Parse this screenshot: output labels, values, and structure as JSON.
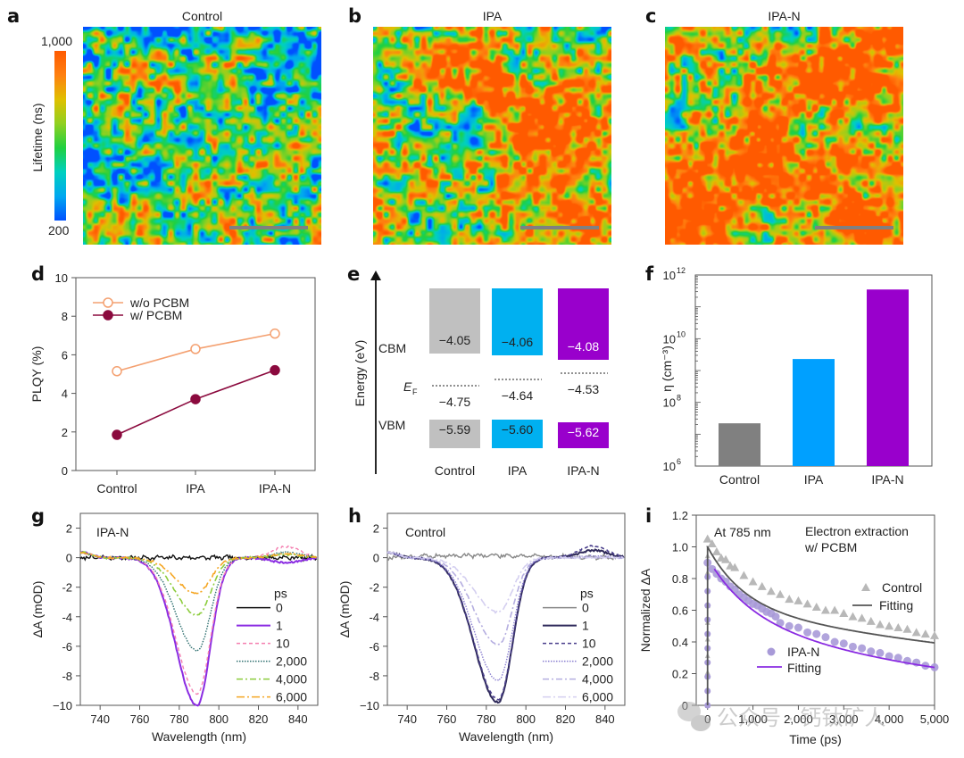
{
  "panels": {
    "a": {
      "label": "a",
      "title": "Control"
    },
    "b": {
      "label": "b",
      "title": "IPA"
    },
    "c": {
      "label": "c",
      "title": "IPA-N"
    },
    "d": {
      "label": "d"
    },
    "e": {
      "label": "e"
    },
    "f": {
      "label": "f"
    },
    "g": {
      "label": "g"
    },
    "h": {
      "label": "h"
    },
    "i": {
      "label": "i"
    }
  },
  "colorbar": {
    "title": "Lifetime (ns)",
    "max_label": "1,000",
    "min_label": "200",
    "range": [
      200,
      1000
    ],
    "colors": [
      "#0050ff",
      "#00a8f0",
      "#00d0c0",
      "#20d040",
      "#90d020",
      "#e0c000",
      "#ff8010",
      "#ff5a00"
    ]
  },
  "watermark": {
    "text": "公众号 · 钙钛矿人",
    "icon": "wechat-icon"
  },
  "chart_data": [
    {
      "id": "a",
      "type": "heatmap",
      "title": "Control",
      "colorbar_label": "Lifetime (ns)",
      "zlim": [
        200,
        1000
      ],
      "description": "PL lifetime map, predominantly blue/green (shorter lifetimes)",
      "mean_level": 0.42,
      "scale_bar": true
    },
    {
      "id": "b",
      "type": "heatmap",
      "title": "IPA",
      "colorbar_label": "Lifetime (ns)",
      "zlim": [
        200,
        1000
      ],
      "description": "PL lifetime map, mixed green/orange with blue channels",
      "mean_level": 0.6,
      "scale_bar": true
    },
    {
      "id": "c",
      "type": "heatmap",
      "title": "IPA-N",
      "colorbar_label": "Lifetime (ns)",
      "zlim": [
        200,
        1000
      ],
      "description": "PL lifetime map, predominantly yellow/orange (longer lifetimes)",
      "mean_level": 0.7,
      "scale_bar": true
    },
    {
      "id": "d",
      "type": "line",
      "categories": [
        "Control",
        "IPA",
        "IPA-N"
      ],
      "series": [
        {
          "name": "w/o PCBM",
          "values": [
            5.15,
            6.3,
            7.1
          ],
          "color": "#f4a070",
          "marker": "open-circle"
        },
        {
          "name": "w/ PCBM",
          "values": [
            1.85,
            3.7,
            5.2
          ],
          "color": "#8b0a3e",
          "marker": "filled-circle"
        }
      ],
      "xlabel": "",
      "ylabel": "PLQY (%)",
      "ylim": [
        0,
        10
      ],
      "yticks": [
        0,
        2,
        4,
        6,
        8,
        10
      ],
      "legend": "top-left"
    },
    {
      "id": "e",
      "type": "bar",
      "subtype": "energy-level-diagram",
      "categories": [
        "Control",
        "IPA",
        "IPA-N"
      ],
      "ylabel": "Energy (eV)",
      "row_labels": {
        "cbm": "CBM",
        "ef": "E",
        "ef_sub": "F",
        "vbm": "VBM"
      },
      "series": [
        {
          "name": "CBM",
          "values": [
            -4.05,
            -4.06,
            -4.08
          ],
          "labels": [
            "−4.05",
            "−4.06",
            "−4.08"
          ]
        },
        {
          "name": "EF",
          "values": [
            -4.75,
            -4.64,
            -4.53
          ],
          "labels": [
            "−4.75",
            "−4.64",
            "−4.53"
          ]
        },
        {
          "name": "VBM",
          "values": [
            -5.59,
            -5.6,
            -5.62
          ],
          "labels": [
            "−5.59",
            "−5.60",
            "−5.62"
          ]
        }
      ],
      "colors": [
        "#c0c0c0",
        "#00b0f0",
        "#9900cc"
      ],
      "label_colors": [
        "#222222",
        "#222222",
        "#ffffff"
      ]
    },
    {
      "id": "f",
      "type": "bar",
      "categories": [
        "Control",
        "IPA",
        "IPA-N"
      ],
      "values": [
        22000000.0,
        2300000000.0,
        350000000000.0
      ],
      "colors": [
        "#808080",
        "#00a0ff",
        "#9900cc"
      ],
      "ylabel": "η (cm⁻³)",
      "yscale": "log",
      "ylim": [
        1000000.0,
        1000000000000.0
      ],
      "yticks": [
        {
          "value": 1000000.0,
          "base": "10",
          "exp": "6"
        },
        {
          "value": 100000000.0,
          "base": "10",
          "exp": "8"
        },
        {
          "value": 10000000000.0,
          "base": "10",
          "exp": "10"
        },
        {
          "value": 1000000000000.0,
          "base": "10",
          "exp": "12"
        }
      ]
    },
    {
      "id": "g",
      "type": "line",
      "annotation": "IPA-N",
      "xlabel": "Wavelength (nm)",
      "ylabel": "ΔA (mOD)",
      "xlim": [
        730,
        850
      ],
      "ylim": [
        -10,
        3
      ],
      "xticks": [
        740,
        760,
        780,
        800,
        820,
        840
      ],
      "yticks": [
        2,
        0,
        -2,
        -4,
        -6,
        -8,
        -10
      ],
      "ytick_labels": [
        "2",
        "0",
        "-2",
        "-4",
        "-6",
        "-8",
        "−10"
      ],
      "legend_title": "ps",
      "legend": "center-right",
      "center_nm": 789,
      "width_left": 15,
      "width_right": 9.5,
      "series": [
        {
          "name": "0",
          "peak": 0,
          "color": "#111111",
          "dash": "solid",
          "width": 1.4,
          "tail": 0.0
        },
        {
          "name": "1",
          "peak": -10.0,
          "color": "#8a2be2",
          "dash": "solid",
          "width": 2,
          "tail": -0.35
        },
        {
          "name": "10",
          "peak": -9.2,
          "color": "#f47fb0",
          "dash": "4,3",
          "width": 1.4,
          "tail": 0.75
        },
        {
          "name": "2,000",
          "peak": -6.3,
          "color": "#2e6f6f",
          "dash": "1.5,1.5",
          "width": 1.4,
          "tail": 0.35
        },
        {
          "name": "4,000",
          "peak": -3.9,
          "color": "#8ccc3c",
          "dash": "7,3,2,3",
          "width": 1.6,
          "tail": 0.2
        },
        {
          "name": "6,000",
          "peak": -2.4,
          "color": "#f5a623",
          "dash": "9,3,2,3",
          "width": 1.6,
          "tail": 0.25
        }
      ]
    },
    {
      "id": "h",
      "type": "line",
      "annotation": "Control",
      "xlabel": "Wavelength (nm)",
      "ylabel": "ΔA (mOD)",
      "xlim": [
        730,
        850
      ],
      "ylim": [
        -10,
        3
      ],
      "xticks": [
        740,
        760,
        780,
        800,
        820,
        840
      ],
      "yticks": [
        2,
        0,
        -2,
        -4,
        -6,
        -8,
        -10
      ],
      "ytick_labels": [
        "2",
        "0",
        "-2",
        "-4",
        "-6",
        "-8",
        "−10"
      ],
      "legend_title": "ps",
      "legend": "center-right",
      "center_nm": 786,
      "width_left": 17,
      "width_right": 10,
      "series": [
        {
          "name": "0",
          "peak": 0,
          "color": "#888888",
          "dash": "solid",
          "width": 1.4,
          "tail": 0.0
        },
        {
          "name": "1",
          "peak": -9.8,
          "color": "#2f2a5a",
          "dash": "solid",
          "width": 2,
          "tail": 0.5
        },
        {
          "name": "10",
          "peak": -9.6,
          "color": "#4a3f8c",
          "dash": "4,3",
          "width": 1.6,
          "tail": 0.8
        },
        {
          "name": "2,000",
          "peak": -8.3,
          "color": "#8a7fd0",
          "dash": "1.5,1.5",
          "width": 1.4,
          "tail": 0.1
        },
        {
          "name": "4,000",
          "peak": -5.9,
          "color": "#b5aee0",
          "dash": "7,3,2,3",
          "width": 1.6,
          "tail": 0.0
        },
        {
          "name": "6,000",
          "peak": -3.7,
          "color": "#d4cff0",
          "dash": "9,3,2,3",
          "width": 1.6,
          "tail": 0.0
        }
      ]
    },
    {
      "id": "i",
      "type": "scatter",
      "annotations": [
        "At 785 nm",
        "Electron extraction",
        "w/ PCBM"
      ],
      "xlabel": "Time (ps)",
      "ylabel": "Normalized ΔA",
      "xlim": [
        -250,
        5000
      ],
      "ylim": [
        0,
        1.2
      ],
      "xticks": [
        0,
        1000,
        2000,
        3000,
        4000,
        5000
      ],
      "xtick_labels": [
        "0",
        "1,000",
        "2,000",
        "3,000",
        "4,000",
        "5,000"
      ],
      "yticks": [
        0,
        0.2,
        0.4,
        0.6,
        0.8,
        1.0,
        1.2
      ],
      "ytick_labels": [
        "0",
        "0.2",
        "0.4",
        "0.6",
        "0.8",
        "1.0",
        "1.2"
      ],
      "series": [
        {
          "name": "Control",
          "marker": "triangle",
          "color": "#b8b8b8",
          "x": [
            0,
            100,
            200,
            300,
            400,
            500,
            600,
            800,
            1000,
            1200,
            1400,
            1600,
            1800,
            2000,
            2200,
            2400,
            2600,
            2800,
            3000,
            3200,
            3400,
            3600,
            3800,
            4000,
            4200,
            4400,
            4600,
            4800,
            5000
          ],
          "y": [
            1.05,
            1.02,
            0.97,
            0.93,
            0.92,
            0.88,
            0.87,
            0.82,
            0.78,
            0.75,
            0.72,
            0.7,
            0.67,
            0.66,
            0.64,
            0.62,
            0.6,
            0.6,
            0.58,
            0.56,
            0.55,
            0.53,
            0.51,
            0.5,
            0.49,
            0.48,
            0.46,
            0.45,
            0.44
          ]
        },
        {
          "name": "Fitting (Control)",
          "legend_label": "Fitting",
          "type": "line",
          "color": "#555555",
          "model": "biexp",
          "params": {
            "a1": 0.38,
            "t1": 800,
            "a2": 0.62,
            "t2": 11000
          }
        },
        {
          "name": "IPA-N",
          "marker": "circle",
          "color": "#a89ad8",
          "x": [
            0,
            100,
            200,
            300,
            400,
            500,
            600,
            700,
            800,
            900,
            1000,
            1100,
            1200,
            1300,
            1400,
            1500,
            1600,
            1800,
            2000,
            2200,
            2400,
            2600,
            2800,
            3000,
            3200,
            3400,
            3600,
            3800,
            4000,
            4200,
            4400,
            4600,
            4800,
            5000
          ],
          "y": [
            0.9,
            0.86,
            0.83,
            0.8,
            0.78,
            0.75,
            0.73,
            0.7,
            0.68,
            0.66,
            0.64,
            0.63,
            0.61,
            0.59,
            0.58,
            0.56,
            0.52,
            0.5,
            0.49,
            0.46,
            0.45,
            0.43,
            0.4,
            0.39,
            0.37,
            0.36,
            0.34,
            0.33,
            0.31,
            0.3,
            0.28,
            0.27,
            0.25,
            0.24
          ]
        },
        {
          "name": "Fitting (IPA-N)",
          "legend_label": "Fitting",
          "type": "line",
          "color": "#8a2be2",
          "model": "biexp",
          "params": {
            "a1": 0.35,
            "t1": 900,
            "a2": 0.58,
            "t2": 5600
          }
        }
      ]
    }
  ]
}
